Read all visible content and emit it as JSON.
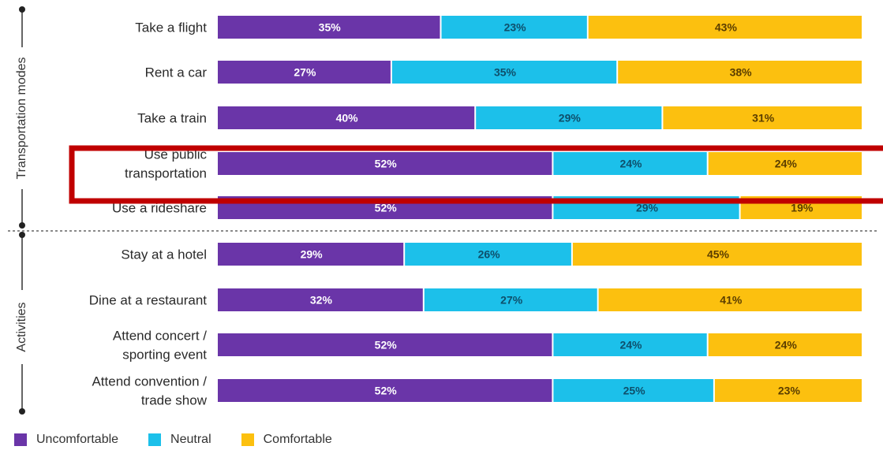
{
  "chart_data": {
    "type": "bar",
    "orientation": "horizontal",
    "stacked": true,
    "ylim": [
      0,
      100
    ],
    "categories": [
      "Take a flight",
      "Rent a car",
      "Take a train",
      "Use public transportation",
      "Use a rideshare",
      "Stay at a hotel",
      "Dine at a restaurant",
      "Attend concert / sporting event",
      "Attend convention / trade show"
    ],
    "category_lines": [
      [
        "Take a flight"
      ],
      [
        "Rent a car"
      ],
      [
        "Take a train"
      ],
      [
        "Use public",
        "transportation"
      ],
      [
        "Use a rideshare"
      ],
      [
        "Stay at a hotel"
      ],
      [
        "Dine at a restaurant"
      ],
      [
        "Attend concert /",
        "sporting event"
      ],
      [
        "Attend convention /",
        "trade show"
      ]
    ],
    "groups": [
      {
        "name": "Transportation modes",
        "categories": [
          "Take a flight",
          "Rent a car",
          "Take a train",
          "Use public transportation",
          "Use a rideshare"
        ]
      },
      {
        "name": "Activities",
        "categories": [
          "Stay at a hotel",
          "Dine at a restaurant",
          "Attend concert / sporting event",
          "Attend convention / trade show"
        ]
      }
    ],
    "series": [
      {
        "name": "Uncomfortable",
        "color": "#6a35a8",
        "values": [
          35,
          27,
          40,
          52,
          52,
          29,
          32,
          52,
          52
        ]
      },
      {
        "name": "Neutral",
        "color": "#1cc0ea",
        "values": [
          23,
          35,
          29,
          24,
          29,
          26,
          27,
          24,
          25
        ]
      },
      {
        "name": "Comfortable",
        "color": "#fcc00f",
        "values": [
          43,
          38,
          31,
          24,
          19,
          45,
          41,
          24,
          23
        ]
      }
    ],
    "value_label_suffix": "%",
    "legend_position": "bottom-left",
    "highlight": {
      "category": "Use public transportation",
      "color": "#c00000"
    }
  }
}
